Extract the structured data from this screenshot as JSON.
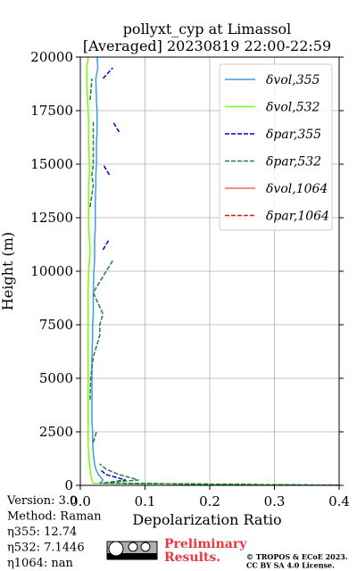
{
  "chart_data": {
    "type": "line",
    "title": "pollyxt_cyp at Limassol",
    "subtitle": "[Averaged] 20230819 22:00-22:59",
    "xlabel": "Depolarization Ratio",
    "ylabel": "Height (m)",
    "xlim": [
      0,
      0.4
    ],
    "xticks": [
      {
        "value": 0,
        "label": "0.0"
      },
      0.1,
      0.2,
      0.3,
      0.4
    ],
    "ylim": [
      0,
      20000
    ],
    "yticks": [
      0,
      2500,
      5000,
      7500,
      10000,
      12500,
      15000,
      17500,
      20000
    ],
    "grid": true,
    "legend": "upper right",
    "y": [
      0,
      100,
      250,
      500,
      750,
      1000,
      1500,
      2000,
      2500,
      3000,
      4000,
      5000,
      6000,
      7000,
      7500,
      8000,
      9000,
      10000,
      10500,
      11000,
      11500,
      12000,
      13000,
      14000,
      14500,
      15000,
      16000,
      16500,
      17000,
      17500,
      18000,
      19000,
      19500,
      20000
    ],
    "series": [
      {
        "name": "δvol,355",
        "color": "#3a9ee4",
        "linestyle": "solid",
        "values": [
          0.4,
          0.03,
          0.035,
          0.028,
          0.024,
          0.022,
          0.02,
          0.019,
          0.019,
          0.018,
          0.018,
          0.018,
          0.018,
          0.019,
          0.019,
          0.02,
          0.02,
          0.021,
          0.022,
          0.022,
          0.022,
          0.023,
          0.023,
          0.024,
          0.024,
          0.025,
          0.025,
          0.026,
          0.026,
          0.026,
          0.025,
          0.024,
          0.027,
          0.026
        ]
      },
      {
        "name": "δvol,532",
        "color": "#7cfc00",
        "linestyle": "solid",
        "values": [
          0.4,
          0.02,
          0.018,
          0.016,
          0.015,
          0.014,
          0.013,
          0.012,
          0.012,
          0.012,
          0.012,
          0.012,
          0.012,
          0.012,
          0.012,
          0.012,
          0.012,
          0.013,
          0.014,
          0.015,
          0.014,
          0.013,
          0.013,
          0.013,
          0.014,
          0.014,
          0.013,
          0.013,
          0.013,
          0.012,
          0.011,
          0.01,
          0.01,
          0.012
        ]
      },
      {
        "name": "δpar,355",
        "color": "#0000cd",
        "linestyle": "dashed",
        "values": [
          0.4,
          0.035,
          0.07,
          0.04,
          0.03,
          null,
          null,
          null,
          null,
          null,
          null,
          null,
          null,
          null,
          null,
          null,
          null,
          null,
          null,
          0.035,
          0.045,
          null,
          null,
          null,
          0.045,
          0.035,
          null,
          0.06,
          0.05,
          null,
          null,
          0.035,
          0.05,
          null
        ]
      },
      {
        "name": "δpar,532",
        "color": "#1e7f3f",
        "linestyle": "dashed",
        "values": [
          0.4,
          0.03,
          0.09,
          0.06,
          0.04,
          0.03,
          null,
          0.02,
          0.025,
          null,
          0.015,
          0.016,
          0.02,
          0.03,
          0.03,
          0.035,
          0.02,
          0.04,
          0.05,
          null,
          null,
          null,
          0.015,
          0.02,
          0.018,
          0.02,
          0.02,
          0.02,
          0.02,
          null,
          0.015,
          0.018,
          null,
          null
        ]
      },
      {
        "name": "δvol,1064",
        "color": "#f4694a",
        "linestyle": "solid",
        "values": [
          null,
          null,
          null,
          null,
          null,
          null,
          null,
          null,
          null,
          null,
          null,
          null,
          null,
          null,
          null,
          null,
          null,
          null,
          null,
          null,
          null,
          null,
          null,
          null,
          null,
          null,
          null,
          null,
          null,
          null,
          null,
          null,
          null,
          null
        ]
      },
      {
        "name": "δpar,1064",
        "color": "#cc1f1f",
        "linestyle": "dashed",
        "values": [
          null,
          null,
          null,
          null,
          null,
          null,
          null,
          null,
          null,
          null,
          null,
          null,
          null,
          null,
          null,
          null,
          null,
          null,
          null,
          null,
          null,
          null,
          null,
          null,
          null,
          null,
          null,
          null,
          null,
          null,
          null,
          null,
          null,
          null
        ]
      }
    ],
    "annotations": [
      "Version: 3.0",
      "Method: Raman",
      "η355:  12.74",
      "η532: 7.1446",
      "η1064:    nan"
    ],
    "stamp": [
      "Preliminary",
      "Results."
    ],
    "license": [
      "© TROPOS & ECoE 2023.",
      "CC BY SA 4.0 License."
    ]
  }
}
